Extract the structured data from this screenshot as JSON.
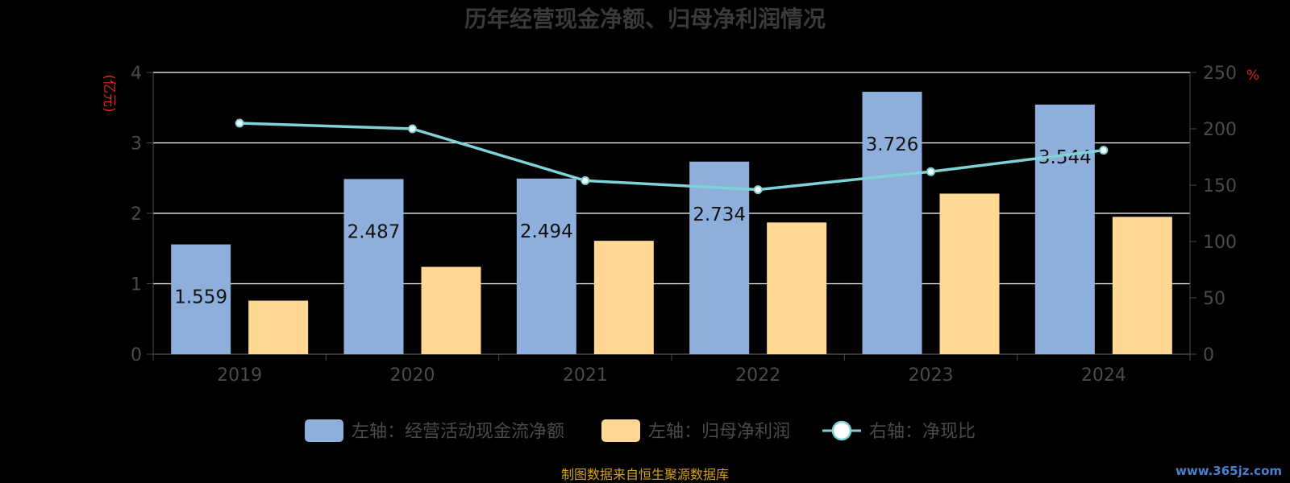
{
  "chart_data": {
    "type": "bar",
    "title": "历年经营现金净额、归母净利润情况",
    "categories": [
      "2019",
      "2020",
      "2021",
      "2022",
      "2023",
      "2024"
    ],
    "left_axis": {
      "unit": "(亿元)",
      "ylim": [
        0,
        4
      ],
      "ticks": [
        "0",
        "1",
        "2",
        "3",
        "4"
      ]
    },
    "right_axis": {
      "unit": "%",
      "ylim": [
        0,
        250
      ],
      "ticks": [
        "0",
        "50",
        "100",
        "150",
        "200",
        "250"
      ]
    },
    "series": [
      {
        "name": "左轴：经营活动现金流净额",
        "type": "bar",
        "axis": "left",
        "color": "#8eaedb",
        "values": [
          1.559,
          2.487,
          2.494,
          2.734,
          3.726,
          3.544
        ],
        "labels": [
          "1.559",
          "2.487",
          "2.494",
          "2.734",
          "3.726",
          "3.544"
        ]
      },
      {
        "name": "左轴：归母净利润",
        "type": "bar",
        "axis": "left",
        "color": "#ffd894",
        "values": [
          0.76,
          1.24,
          1.61,
          1.87,
          2.28,
          1.95
        ]
      },
      {
        "name": "右轴：净现比",
        "type": "line",
        "axis": "right",
        "color": "#7fd3d8",
        "values": [
          205,
          200,
          154,
          146,
          162,
          181
        ]
      }
    ],
    "grid": true,
    "legend_position": "bottom"
  },
  "footer": {
    "source": "制图数据来自恒生聚源数据库",
    "watermark": "www.365jz.com"
  }
}
